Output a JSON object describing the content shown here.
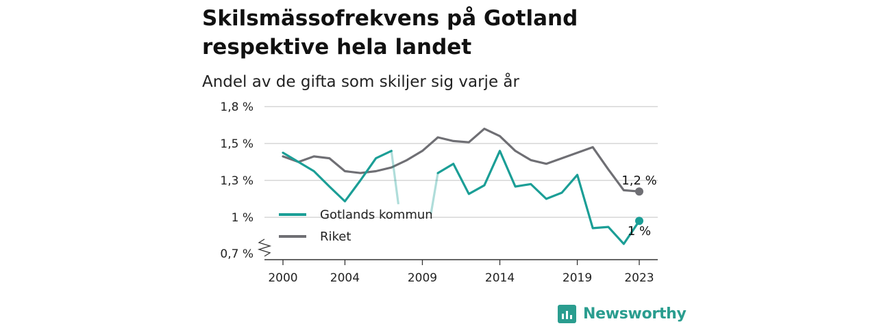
{
  "chart_data": {
    "type": "line",
    "title": "Skilsmässofrekvens på Gotland respektive hela landet",
    "subtitle": "Andel av de gifta som skiljer sig varje år",
    "ylim": [
      0.7,
      1.8
    ],
    "y_ticks": [
      "1,8 %",
      "1,5 %",
      "1,3 %",
      "1 %",
      "0,7 %"
    ],
    "y_tick_values": [
      1.8,
      1.5,
      1.3,
      1.0,
      0.7
    ],
    "x_ticks": [
      "2000",
      "2004",
      "2009",
      "2014",
      "2019",
      "2023"
    ],
    "x_tick_values": [
      2000,
      2004,
      2009,
      2014,
      2019,
      2023
    ],
    "x": [
      2000,
      2001,
      2002,
      2003,
      2004,
      2005,
      2006,
      2007,
      2008,
      2009,
      2010,
      2011,
      2012,
      2013,
      2014,
      2015,
      2016,
      2017,
      2018,
      2019,
      2020,
      2021,
      2022,
      2023
    ],
    "series": [
      {
        "name": "Gotlands kommun",
        "color": "#1b9e96",
        "values": [
          1.45,
          1.4,
          1.35,
          1.25,
          1.13,
          1.3,
          1.42,
          1.46,
          null,
          null,
          1.34,
          1.39,
          1.19,
          1.26,
          1.46,
          1.25,
          1.27,
          1.15,
          1.2,
          1.33,
          0.91,
          0.92,
          0.78,
          0.97
        ]
      },
      {
        "name": "Riket",
        "color": "#6f6f74",
        "values": [
          1.43,
          1.4,
          1.43,
          1.42,
          1.35,
          1.34,
          1.35,
          1.37,
          1.41,
          1.46,
          1.55,
          1.52,
          1.51,
          1.62,
          1.56,
          1.46,
          1.41,
          1.39,
          1.42,
          1.45,
          1.48,
          1.36,
          1.22,
          1.21
        ]
      }
    ],
    "end_labels": {
      "Riket": "1,2 %",
      "Gotlands kommun": "1 %"
    },
    "legend": [
      "Gotlands kommun",
      "Riket"
    ],
    "legend_position": "bottom-left",
    "grid": true
  },
  "brand": {
    "name": "Newsworthy",
    "icon": "bar-chart-icon"
  }
}
